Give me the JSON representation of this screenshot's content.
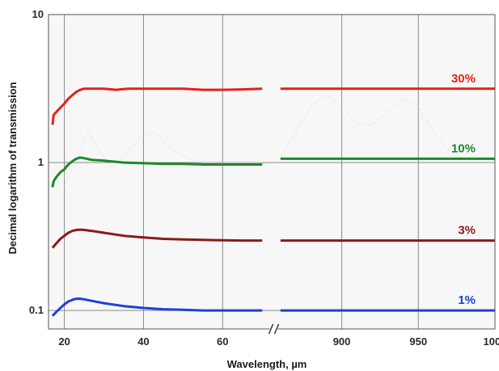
{
  "chart_data": {
    "type": "line",
    "title": "",
    "xlabel": "Wavelength, µm",
    "ylabel": "Decimal logarithm of transmission",
    "yscale": "log",
    "ylim": [
      0.075,
      10
    ],
    "yticks": [
      {
        "value": 10,
        "label": "10"
      },
      {
        "value": 1,
        "label": "1"
      },
      {
        "value": 0.1,
        "label": "0.1"
      }
    ],
    "x_segments": [
      {
        "domain": [
          16,
          72
        ],
        "ticks": [
          {
            "value": 20,
            "label": "20"
          },
          {
            "value": 40,
            "label": "40"
          },
          {
            "value": 60,
            "label": "60"
          }
        ]
      },
      {
        "domain": [
          858,
          1000
        ],
        "ticks": [
          {
            "value": 900,
            "label": "900"
          },
          {
            "value": 950,
            "label": "950"
          },
          {
            "value": 1000,
            "label": "1000"
          }
        ]
      }
    ],
    "axis_break": true,
    "grid": true,
    "series": [
      {
        "name": "30%",
        "color": "#e2231a",
        "segments": [
          {
            "x": [
              17,
              17.3,
              18,
              19,
              20,
              21,
              22,
              23,
              24,
              25,
              27,
              30,
              33,
              36,
              40,
              45,
              50,
              55,
              60,
              65,
              70
            ],
            "y": [
              1.8,
              2.1,
              2.2,
              2.35,
              2.5,
              2.7,
              2.85,
              3.0,
              3.1,
              3.15,
              3.15,
              3.15,
              3.1,
              3.15,
              3.15,
              3.15,
              3.15,
              3.1,
              3.1,
              3.12,
              3.15
            ]
          },
          {
            "x": [
              860,
              880,
              900,
              920,
              940,
              960,
              980,
              1000
            ],
            "y": [
              3.15,
              3.15,
              3.15,
              3.15,
              3.15,
              3.15,
              3.15,
              3.15
            ]
          }
        ]
      },
      {
        "name": "10%",
        "color": "#1a8a2a",
        "segments": [
          {
            "x": [
              17,
              17.3,
              18,
              19,
              20,
              21,
              22,
              23,
              24,
              25,
              27,
              30,
              35,
              40,
              45,
              50,
              55,
              60,
              65,
              70
            ],
            "y": [
              0.68,
              0.75,
              0.8,
              0.86,
              0.9,
              0.97,
              1.02,
              1.06,
              1.08,
              1.07,
              1.04,
              1.03,
              1.0,
              0.99,
              0.98,
              0.98,
              0.97,
              0.97,
              0.97,
              0.97
            ]
          },
          {
            "x": [
              860,
              880,
              900,
              920,
              940,
              960,
              980,
              1000
            ],
            "y": [
              1.06,
              1.06,
              1.06,
              1.06,
              1.06,
              1.06,
              1.06,
              1.06
            ]
          }
        ]
      },
      {
        "name": "3%",
        "color": "#8b1a1a",
        "segments": [
          {
            "x": [
              17,
              18,
              19,
              20,
              21,
              22,
              23,
              24,
              25,
              27,
              30,
              35,
              40,
              45,
              50,
              55,
              60,
              65,
              70
            ],
            "y": [
              0.265,
              0.285,
              0.305,
              0.32,
              0.335,
              0.345,
              0.35,
              0.352,
              0.35,
              0.345,
              0.335,
              0.32,
              0.312,
              0.305,
              0.302,
              0.3,
              0.298,
              0.297,
              0.297
            ]
          },
          {
            "x": [
              860,
              880,
              900,
              920,
              940,
              960,
              980,
              1000
            ],
            "y": [
              0.297,
              0.297,
              0.297,
              0.297,
              0.297,
              0.297,
              0.297,
              0.297
            ]
          }
        ]
      },
      {
        "name": "1%",
        "color": "#1f3fd6",
        "segments": [
          {
            "x": [
              17,
              18,
              19,
              20,
              21,
              22,
              23,
              24,
              25,
              27,
              30,
              35,
              40,
              45,
              50,
              55,
              60,
              65,
              70
            ],
            "y": [
              0.092,
              0.098,
              0.104,
              0.11,
              0.115,
              0.118,
              0.12,
              0.12,
              0.119,
              0.116,
              0.112,
              0.107,
              0.104,
              0.102,
              0.101,
              0.1,
              0.1,
              0.1,
              0.1
            ]
          },
          {
            "x": [
              860,
              880,
              900,
              920,
              940,
              960,
              980,
              1000
            ],
            "y": [
              0.1,
              0.1,
              0.1,
              0.1,
              0.1,
              0.1,
              0.1,
              0.1
            ]
          }
        ]
      }
    ],
    "faint_background_trace": {
      "color": "#d8d8d8",
      "segments": [
        {
          "x": [
            20,
            23,
            26,
            29,
            32,
            36,
            40,
            43,
            46,
            50,
            55,
            60,
            65,
            70
          ],
          "y": [
            0.7,
            1.0,
            1.6,
            1.2,
            0.9,
            1.2,
            1.5,
            1.6,
            1.3,
            1.1,
            1.0,
            1.0,
            1.0,
            1.0
          ]
        },
        {
          "x": [
            860,
            870,
            880,
            890,
            900,
            910,
            920,
            930,
            940,
            950,
            960,
            970,
            980
          ],
          "y": [
            1.1,
            1.6,
            2.4,
            2.9,
            2.4,
            1.8,
            1.8,
            2.2,
            2.7,
            2.4,
            1.6,
            1.2,
            1.05
          ]
        }
      ]
    }
  }
}
